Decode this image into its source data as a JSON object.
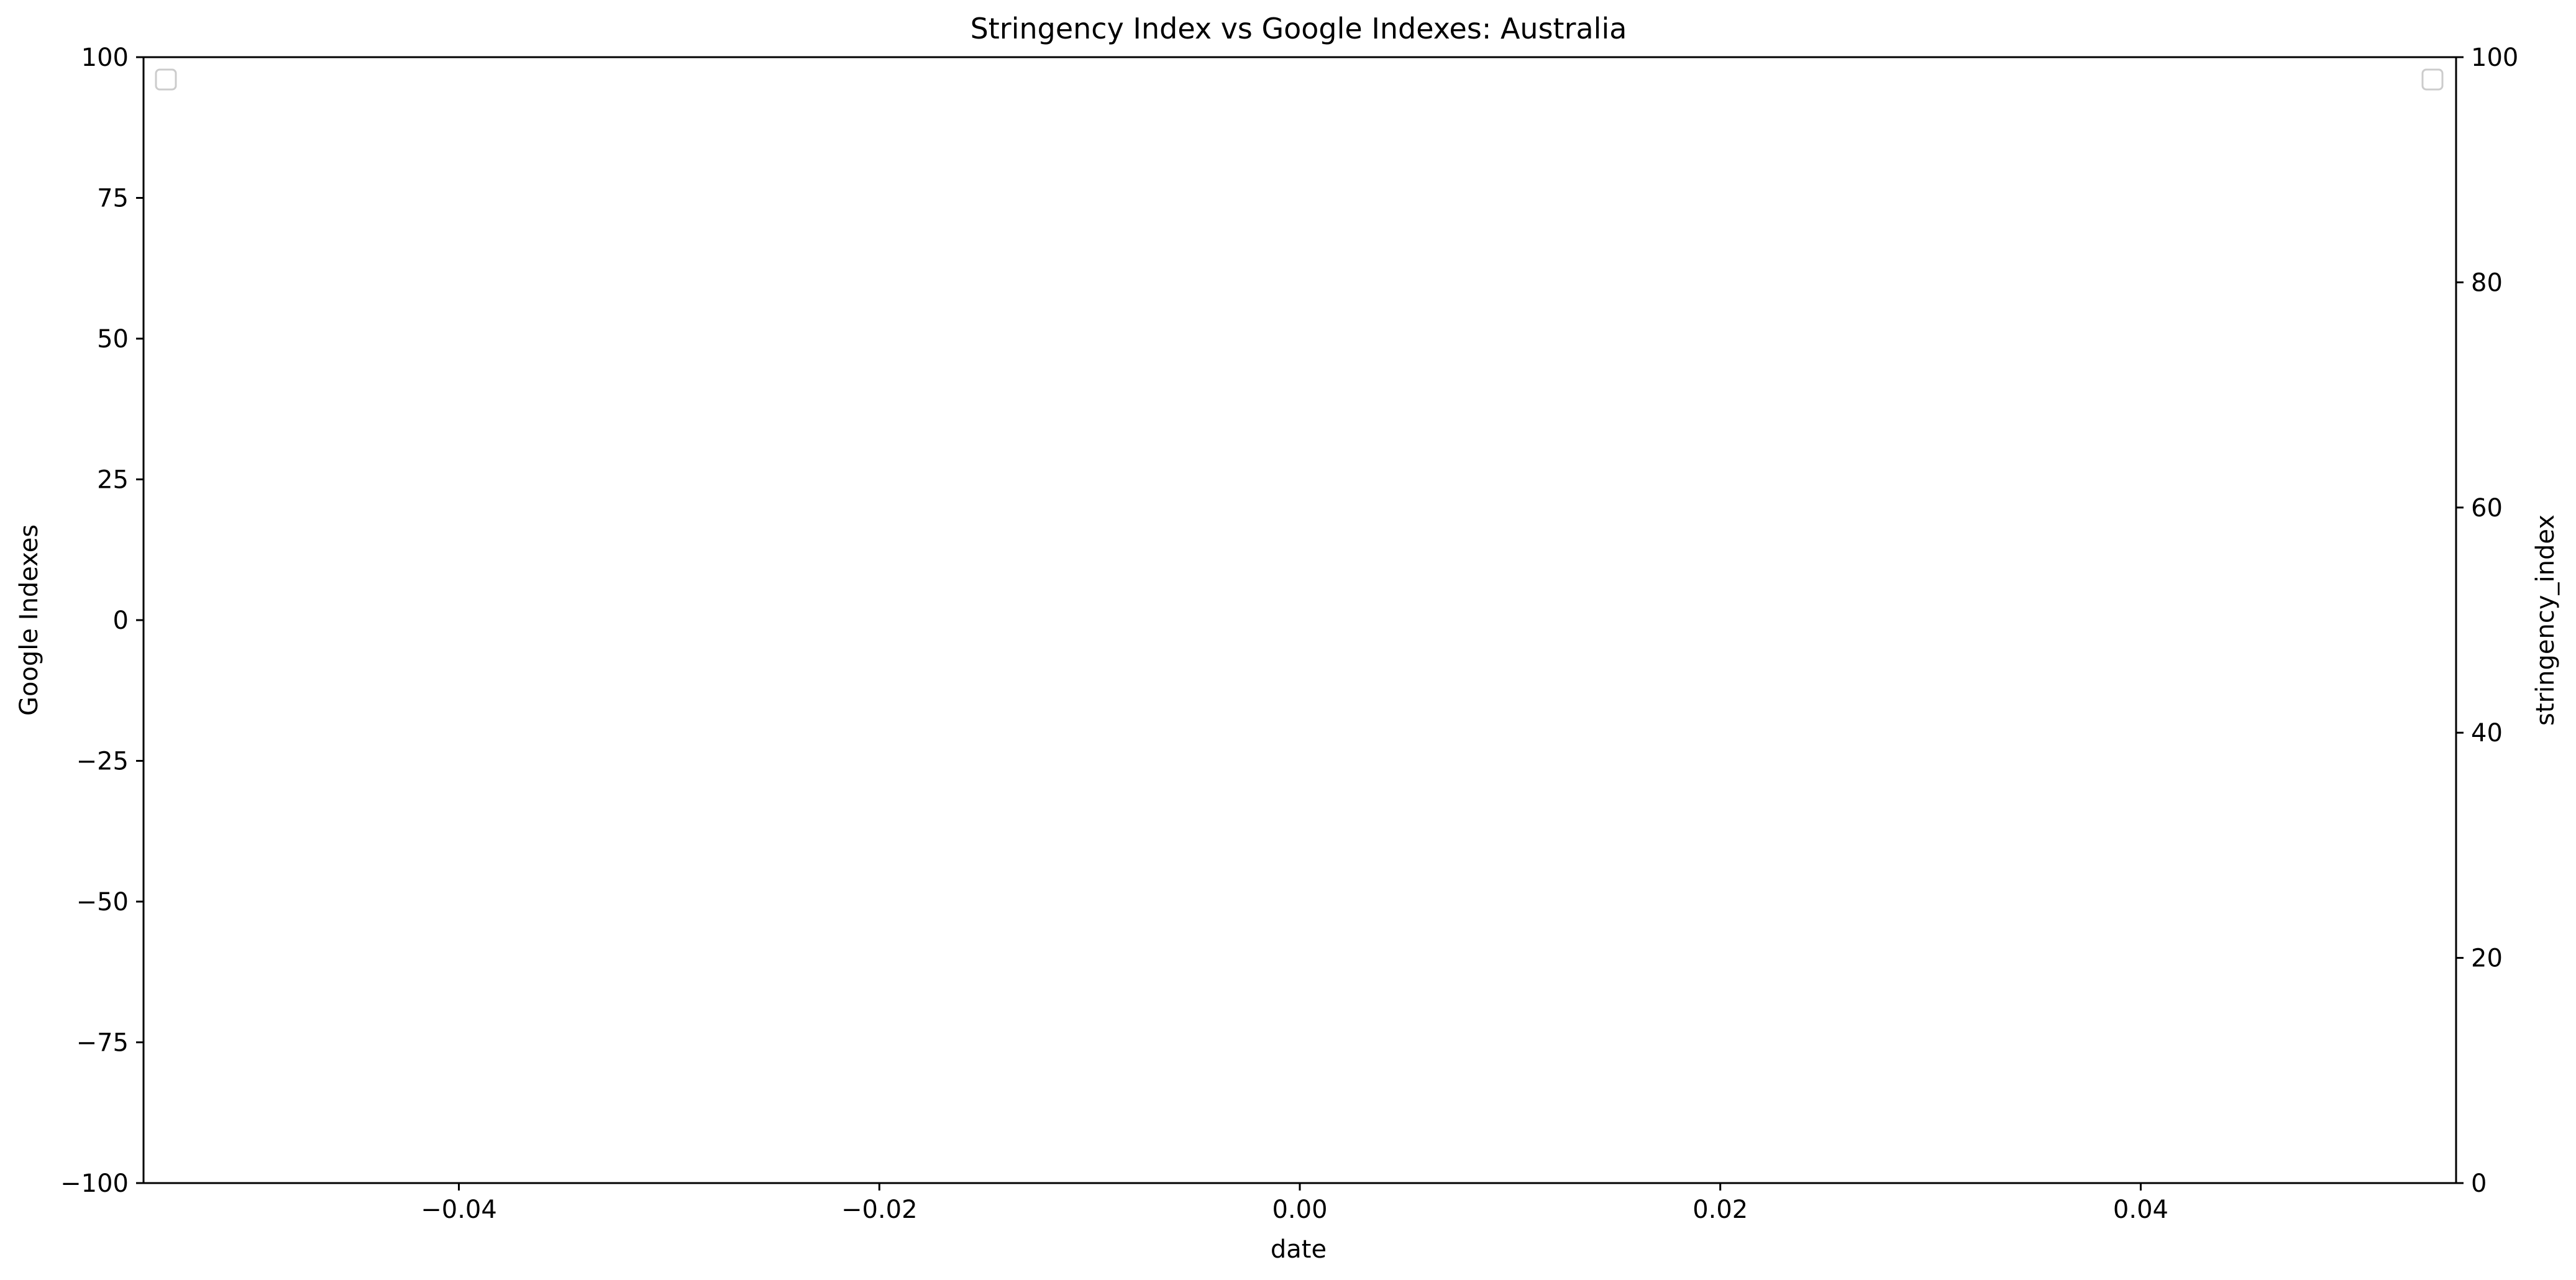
{
  "chart_data": {
    "type": "line",
    "title": "Stringency Index vs Google Indexes:  Australia",
    "xlabel": "date",
    "ylabel": "Google Indexes",
    "y2label": "stringency_index",
    "xlim": [
      -0.055,
      0.055
    ],
    "ylim": [
      -100,
      100
    ],
    "y2lim": [
      0,
      100
    ],
    "x_ticks": [
      -0.04,
      -0.02,
      0.0,
      0.02,
      0.04
    ],
    "x_tick_labels": [
      "−0.04",
      "−0.02",
      "0.00",
      "0.02",
      "0.04"
    ],
    "y_ticks": [
      -100,
      -75,
      -50,
      -25,
      0,
      25,
      50,
      75,
      100
    ],
    "y_tick_labels": [
      "−100",
      "−75",
      "−50",
      "−25",
      "0",
      "25",
      "50",
      "75",
      "100"
    ],
    "y2_ticks": [
      0,
      20,
      40,
      60,
      80,
      100
    ],
    "y2_tick_labels": [
      "0",
      "20",
      "40",
      "60",
      "80",
      "100"
    ],
    "series": [],
    "grid": false,
    "legend": [
      "top-left",
      "top-right"
    ],
    "colors": {
      "axis": "#000000",
      "background": "#ffffff",
      "legend_border": "#cccccc"
    }
  }
}
